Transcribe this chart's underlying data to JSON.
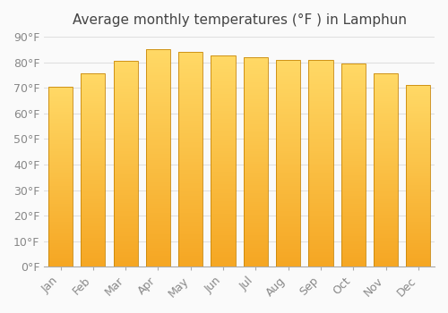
{
  "title": "Average monthly temperatures (°F ) in Lamphun",
  "months": [
    "Jan",
    "Feb",
    "Mar",
    "Apr",
    "May",
    "Jun",
    "Jul",
    "Aug",
    "Sep",
    "Oct",
    "Nov",
    "Dec"
  ],
  "values": [
    70.5,
    75.5,
    80.5,
    85,
    84,
    82.5,
    82,
    81,
    81,
    79.5,
    75.5,
    71
  ],
  "bar_color_bottom": "#F5A623",
  "bar_color_top": "#FFD966",
  "bar_edge_color": "#C8870A",
  "background_color": "#FAFAFA",
  "grid_color": "#E0E0E0",
  "ylim": [
    0,
    90
  ],
  "yticks": [
    0,
    10,
    20,
    30,
    40,
    50,
    60,
    70,
    80,
    90
  ],
  "ylabel_suffix": "°F",
  "title_fontsize": 11,
  "tick_fontsize": 9,
  "bar_width": 0.75,
  "gradient_steps": 100
}
